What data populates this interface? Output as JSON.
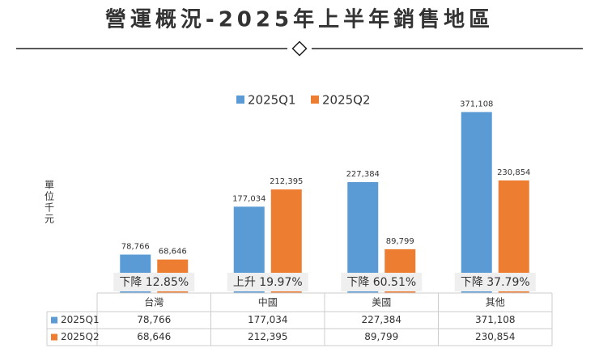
{
  "chart_data": {
    "type": "bar",
    "title": "營運概況-2025年上半年銷售地區",
    "y_label": "單位千元",
    "categories": [
      "台灣",
      "中國",
      "美國",
      "其他"
    ],
    "series": [
      {
        "name": "2025Q1",
        "color": "#5b9bd5",
        "values": [
          78766,
          177034,
          227384,
          371108
        ],
        "value_labels": [
          "78,766",
          "177,034",
          "227,384",
          "371,108"
        ]
      },
      {
        "name": "2025Q2",
        "color": "#ed7d31",
        "values": [
          68646,
          212395,
          89799,
          230854
        ],
        "value_labels": [
          "68,646",
          "212,395",
          "89,799",
          "230,854"
        ]
      }
    ],
    "annotations": [
      "下降 12.85%",
      "上升 19.97%",
      "下降 60.51%",
      "下降 37.79%"
    ],
    "ylim": [
      0,
      400000
    ],
    "legend": "top"
  }
}
